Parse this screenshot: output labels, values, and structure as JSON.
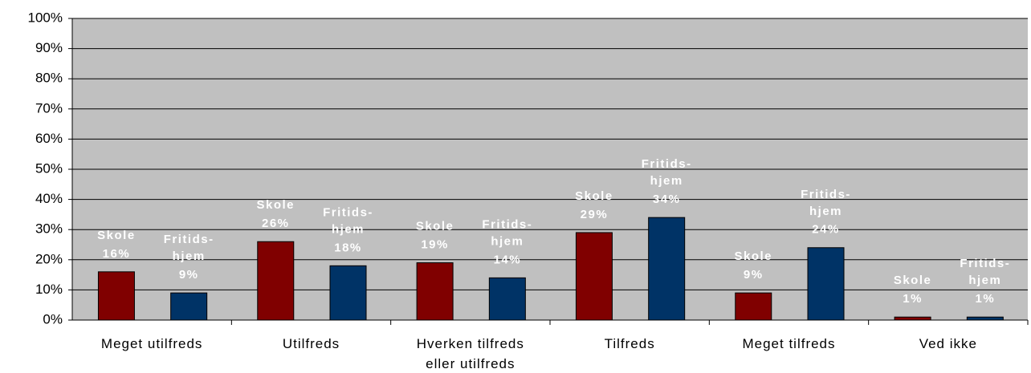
{
  "chart_data": {
    "type": "bar",
    "categories": [
      "Meget utilfreds",
      "Utilfreds",
      "Hverken tilfreds eller utilfreds",
      "Tilfreds",
      "Meget tilfreds",
      "Ved ikke"
    ],
    "series": [
      {
        "name": "Skole",
        "color": "#800000",
        "values": [
          16,
          26,
          19,
          29,
          9,
          1
        ],
        "value_labels": [
          "16%",
          "26%",
          "19%",
          "29%",
          "9%",
          "1%"
        ]
      },
      {
        "name": "Fritids-hjem",
        "color": "#003366",
        "values": [
          9,
          18,
          14,
          34,
          24,
          1
        ],
        "value_labels": [
          "9%",
          "18%",
          "14%",
          "34%",
          "24%",
          "1%"
        ]
      }
    ],
    "ylim": [
      0,
      100
    ],
    "yticks": [
      {
        "value": 0,
        "label": "0%"
      },
      {
        "value": 10,
        "label": "10%"
      },
      {
        "value": 20,
        "label": "20%"
      },
      {
        "value": 30,
        "label": "30%"
      },
      {
        "value": 40,
        "label": "40%"
      },
      {
        "value": 50,
        "label": "50%"
      },
      {
        "value": 60,
        "label": "60%"
      },
      {
        "value": 70,
        "label": "70%"
      },
      {
        "value": 80,
        "label": "80%"
      },
      {
        "value": 90,
        "label": "90%"
      },
      {
        "value": 100,
        "label": "100%"
      }
    ],
    "grid": true,
    "plot_background": "#c0c0c0"
  }
}
